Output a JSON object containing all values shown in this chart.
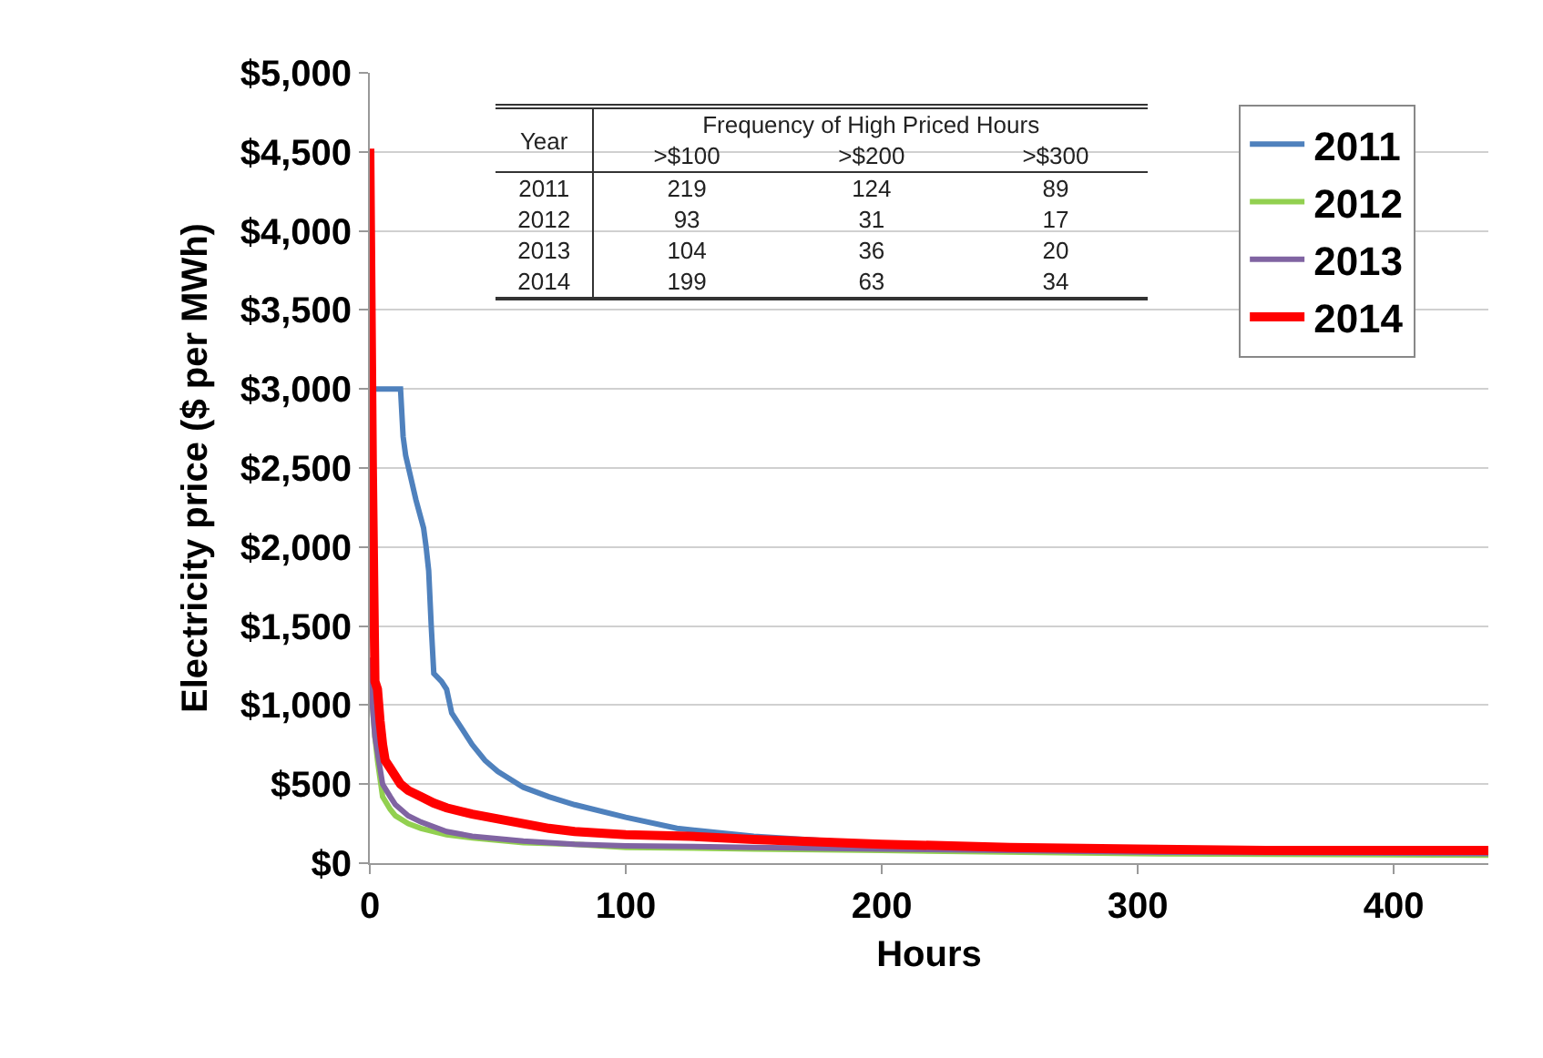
{
  "chart_data": {
    "type": "line",
    "xlabel": "Hours",
    "ylabel": "Electricity price ($ per MWh)",
    "xlim": [
      0,
      437
    ],
    "xticks": [
      0,
      100,
      200,
      300,
      400
    ],
    "ylim": [
      0,
      5000
    ],
    "yticks": [
      {
        "value": 0,
        "label": "$0"
      },
      {
        "value": 500,
        "label": "$500"
      },
      {
        "value": 1000,
        "label": "$1,000"
      },
      {
        "value": 1500,
        "label": "$1,500"
      },
      {
        "value": 2000,
        "label": "$2,000"
      },
      {
        "value": 2500,
        "label": "$2,500"
      },
      {
        "value": 3000,
        "label": "$3,000"
      },
      {
        "value": 3500,
        "label": "$3,500"
      },
      {
        "value": 4000,
        "label": "$4,000"
      },
      {
        "value": 4500,
        "label": "$4,500"
      },
      {
        "value": 5000,
        "label": "$5,000"
      }
    ],
    "grid": "y",
    "legend": "top right",
    "marker": "none",
    "line_style": "solid",
    "series": [
      {
        "name": "2011",
        "color": "#4f81bd",
        "x": [
          0,
          2,
          12,
          13,
          14,
          18,
          21,
          22,
          23,
          24,
          25,
          28,
          30,
          32,
          36,
          40,
          45,
          50,
          60,
          70,
          80,
          100,
          120,
          150,
          180,
          200
        ],
        "values": [
          3000,
          3000,
          3000,
          2700,
          2580,
          2300,
          2120,
          2000,
          1850,
          1500,
          1200,
          1150,
          1100,
          950,
          850,
          750,
          650,
          580,
          480,
          420,
          370,
          290,
          220,
          170,
          140,
          120
        ]
      },
      {
        "name": "2012",
        "color": "#92d050",
        "x": [
          0,
          1,
          2,
          3,
          5,
          8,
          10,
          15,
          20,
          30,
          40,
          60,
          80,
          100,
          150,
          200,
          300,
          437
        ],
        "values": [
          1300,
          1000,
          800,
          650,
          420,
          340,
          300,
          250,
          220,
          180,
          160,
          130,
          120,
          100,
          90,
          80,
          60,
          50
        ]
      },
      {
        "name": "2013",
        "color": "#8064a2",
        "x": [
          0,
          1,
          2,
          3,
          5,
          8,
          10,
          15,
          20,
          30,
          40,
          60,
          80,
          100,
          150,
          200,
          300,
          437
        ],
        "values": [
          1300,
          1000,
          800,
          700,
          500,
          420,
          370,
          300,
          260,
          200,
          170,
          140,
          120,
          110,
          100,
          90,
          70,
          60
        ]
      },
      {
        "name": "2014",
        "color": "#ff0000",
        "x": [
          0,
          1,
          2,
          3,
          4,
          5,
          6,
          8,
          10,
          12,
          15,
          20,
          25,
          30,
          40,
          50,
          60,
          70,
          80,
          100,
          125,
          150,
          200,
          250,
          300,
          350,
          437
        ],
        "values": [
          4520,
          2500,
          1150,
          1100,
          900,
          750,
          650,
          600,
          550,
          500,
          460,
          420,
          380,
          350,
          310,
          280,
          250,
          220,
          200,
          180,
          170,
          150,
          120,
          100,
          90,
          80,
          80
        ]
      }
    ],
    "annotations": [
      "Year",
      "Frequency of High Priced Hours",
      ">$100",
      ">$200",
      ">$300",
      "2011",
      "219",
      "124",
      "89",
      "2012",
      "93",
      "31",
      "17",
      "2013",
      "104",
      "36",
      "20",
      "2014",
      "199",
      "63",
      "34"
    ]
  }
}
